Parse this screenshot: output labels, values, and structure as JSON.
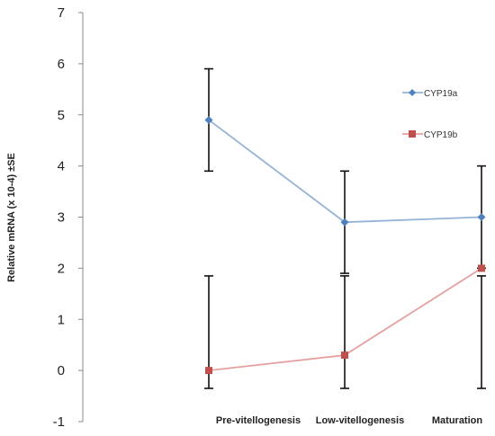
{
  "chart_data": {
    "type": "line",
    "title": "",
    "xlabel": "",
    "ylabel": "Relative mRNA (x 10-4) ±SE",
    "ylim": [
      -1,
      7
    ],
    "yticks": [
      -1,
      0,
      1,
      2,
      3,
      4,
      5,
      6,
      7
    ],
    "categories": [
      "Pre-vitellogenesis",
      "Low-vitellogenesis",
      "Maturation"
    ],
    "grid": false,
    "legend_position": "right",
    "series": [
      {
        "name": "CYP19a",
        "color": "#4f81bd",
        "line_color": "#95b3d7",
        "marker": "diamond",
        "values": [
          4.9,
          2.9,
          3.0
        ],
        "error_low": [
          3.9,
          1.9,
          2.0
        ],
        "error_high": [
          5.9,
          3.9,
          4.0
        ]
      },
      {
        "name": "CYP19b",
        "color": "#c0504d",
        "line_color": "#e6a0a0",
        "marker": "square",
        "values": [
          0.0,
          0.3,
          2.0
        ],
        "error_low": [
          -0.35,
          -0.35,
          -0.35
        ],
        "error_high": [
          1.85,
          1.85,
          1.85
        ]
      }
    ]
  }
}
